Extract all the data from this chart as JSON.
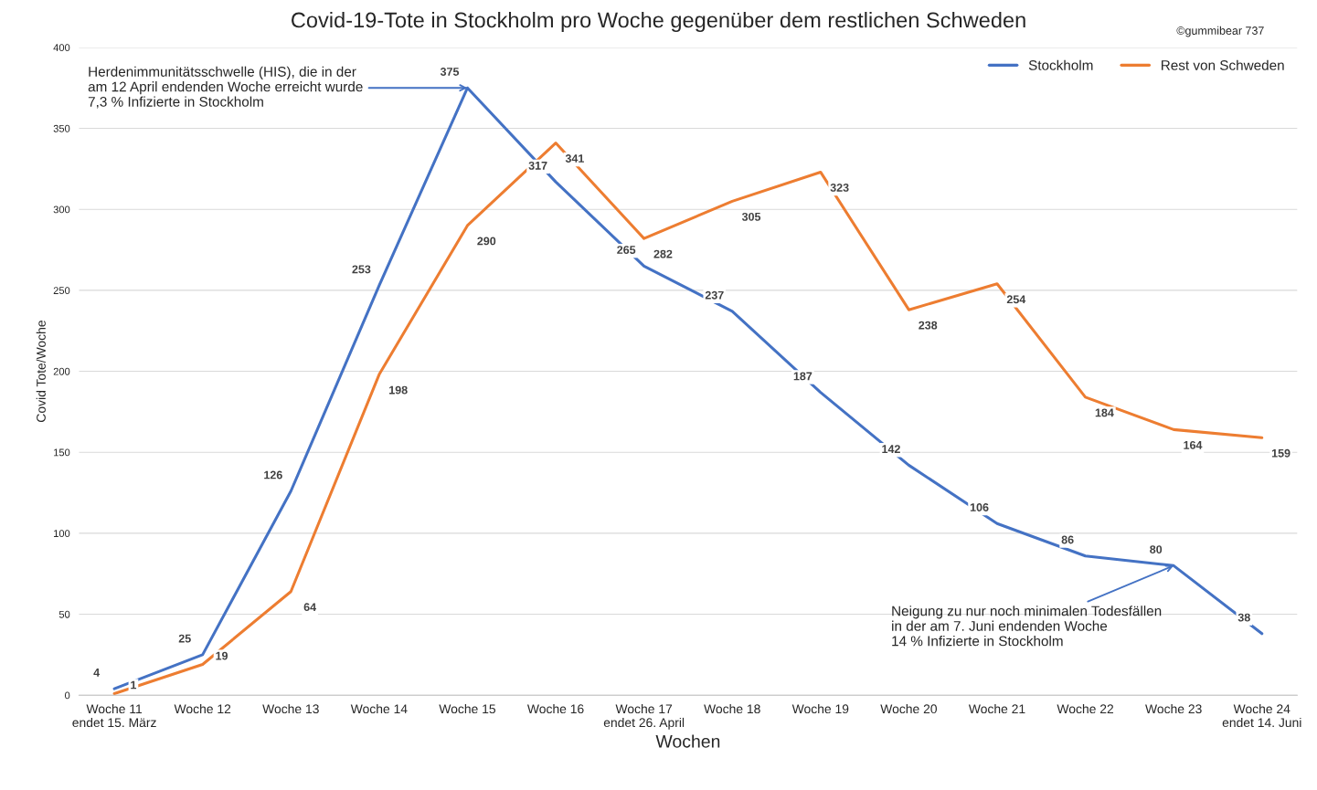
{
  "chart_data": {
    "type": "line",
    "title": "Covid-19-Tote in Stockholm pro Woche gegenüber dem restlichen Schweden",
    "xlabel": "Wochen",
    "ylabel": "Covid Tote/Woche",
    "categories": [
      "Woche 11\nendet 15. März",
      "Woche 12",
      "Woche 13",
      "Woche 14",
      "Woche 15",
      "Woche 16",
      "Woche 17\nendet 26. April",
      "Woche 18",
      "Woche 19",
      "Woche 20",
      "Woche 21",
      "Woche 22",
      "Woche 23",
      "Woche 24\nendet 14. Juni"
    ],
    "series": [
      {
        "name": "Stockholm",
        "color": "#4472c4",
        "values": [
          4,
          25,
          126,
          253,
          375,
          317,
          265,
          237,
          187,
          142,
          106,
          86,
          80,
          38
        ]
      },
      {
        "name": "Rest von Schweden",
        "color": "#ed7d31",
        "values": [
          1,
          19,
          64,
          198,
          290,
          341,
          282,
          305,
          323,
          238,
          254,
          184,
          164,
          159
        ]
      }
    ],
    "ylim": [
      0,
      400
    ],
    "yticks": [
      0,
      50,
      100,
      150,
      200,
      250,
      300,
      350,
      400
    ],
    "grid": "y",
    "legend": "top right",
    "data_labels": true,
    "marker": "none",
    "line_style": "solid",
    "annotations": [
      {
        "text": "Herdenimmunitätsschwelle (HIS), die in der\nam 12 April endenden Woche erreicht wurde\n7,3 % Infizierte in Stockholm",
        "x": "Woche 15",
        "y": 375
      },
      {
        "text": "Neigung zu nur noch minimalen Todesfällen\nin der am 7. Juni endenden Woche\n14 % Infizierte in Stockholm",
        "x": "Woche 23",
        "y": 80
      },
      "©gummibear 737"
    ]
  }
}
